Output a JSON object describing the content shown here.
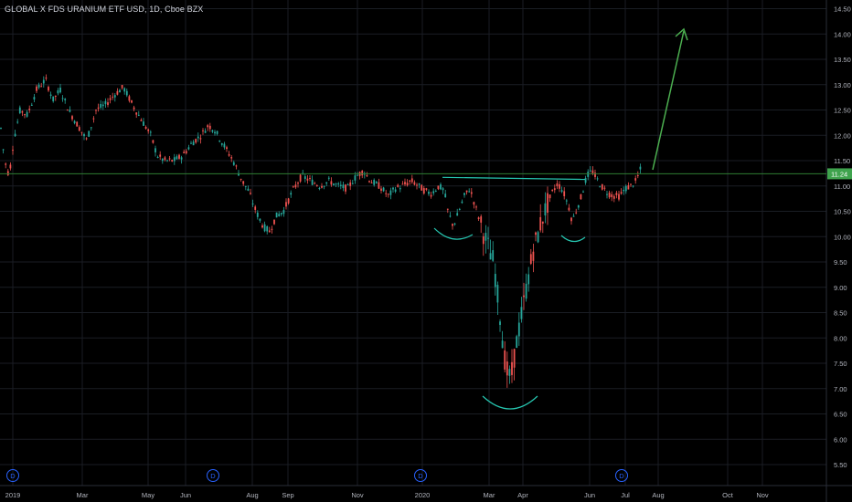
{
  "header": {
    "symbol_title": "GLOBAL X FDS URANIUM ETF USD, 1D, Cboe BZX"
  },
  "colors": {
    "background": "#000000",
    "grid": "#1a1d24",
    "up": "#26a69a",
    "down": "#ef5350",
    "axis_text": "#b2b5be",
    "price_line": "#2e7d32",
    "last_price_badge": "#3fa34d",
    "drawing_line": "#26c6b0",
    "drawing_arrow": "#4caf50",
    "dividend_marker": "#2962ff"
  },
  "chart_data": {
    "type": "candlestick",
    "title": "GLOBAL X FDS URANIUM ETF USD, 1D, Cboe BZX",
    "last_price": "11.24",
    "last_price_value": 11.24,
    "ylim": [
      5.3,
      14.6
    ],
    "y_ticks": [
      "14.50",
      "14.00",
      "13.50",
      "13.00",
      "12.50",
      "12.00",
      "11.50",
      "11.00",
      "10.50",
      "10.00",
      "9.50",
      "9.00",
      "8.50",
      "8.00",
      "7.50",
      "7.00",
      "6.50",
      "6.00",
      "5.50"
    ],
    "x_ticks": [
      "2019",
      "Mar",
      "May",
      "Jun",
      "Aug",
      "Sep",
      "Nov",
      "2020",
      "Mar",
      "Apr",
      "Jun",
      "Jul",
      "Aug",
      "Oct",
      "Nov"
    ],
    "dividend_markers": [
      "D",
      "D",
      "D",
      "D"
    ],
    "path_points": [
      [
        0,
        12.3
      ],
      [
        5,
        11.5
      ],
      [
        10,
        11.2
      ],
      [
        15,
        11.9
      ],
      [
        22,
        12.5
      ],
      [
        30,
        12.4
      ],
      [
        40,
        12.9
      ],
      [
        50,
        13.1
      ],
      [
        58,
        12.7
      ],
      [
        66,
        12.9
      ],
      [
        75,
        12.5
      ],
      [
        85,
        12.2
      ],
      [
        95,
        11.9
      ],
      [
        105,
        12.5
      ],
      [
        115,
        12.6
      ],
      [
        125,
        12.8
      ],
      [
        135,
        12.95
      ],
      [
        145,
        12.6
      ],
      [
        155,
        12.3
      ],
      [
        165,
        12.0
      ],
      [
        172,
        11.6
      ],
      [
        180,
        11.5
      ],
      [
        190,
        11.5
      ],
      [
        200,
        11.6
      ],
      [
        210,
        11.85
      ],
      [
        220,
        12.0
      ],
      [
        228,
        12.2
      ],
      [
        235,
        12.1
      ],
      [
        245,
        11.8
      ],
      [
        255,
        11.5
      ],
      [
        265,
        11.1
      ],
      [
        272,
        10.9
      ],
      [
        280,
        10.5
      ],
      [
        288,
        10.2
      ],
      [
        295,
        10.1
      ],
      [
        302,
        10.4
      ],
      [
        310,
        10.5
      ],
      [
        320,
        10.9
      ],
      [
        330,
        11.2
      ],
      [
        340,
        11.1
      ],
      [
        350,
        11.0
      ],
      [
        360,
        11.1
      ],
      [
        370,
        11.0
      ],
      [
        380,
        10.95
      ],
      [
        390,
        11.2
      ],
      [
        398,
        11.3
      ],
      [
        405,
        11.1
      ],
      [
        415,
        11.0
      ],
      [
        425,
        10.8
      ],
      [
        432,
        10.95
      ],
      [
        440,
        11.0
      ],
      [
        450,
        11.1
      ],
      [
        458,
        11.0
      ],
      [
        465,
        10.9
      ],
      [
        472,
        10.85
      ],
      [
        480,
        11.0
      ],
      [
        486,
        10.9
      ],
      [
        490,
        10.5
      ],
      [
        496,
        10.2
      ],
      [
        502,
        10.5
      ],
      [
        508,
        10.8
      ],
      [
        514,
        10.95
      ],
      [
        520,
        10.6
      ],
      [
        525,
        10.3
      ],
      [
        530,
        10.0
      ],
      [
        536,
        9.7
      ],
      [
        540,
        9.5
      ],
      [
        544,
        8.9
      ],
      [
        548,
        8.3
      ],
      [
        552,
        7.6
      ],
      [
        556,
        7.2
      ],
      [
        560,
        7.3
      ],
      [
        564,
        7.8
      ],
      [
        568,
        8.2
      ],
      [
        572,
        8.6
      ],
      [
        576,
        9.0
      ],
      [
        580,
        9.4
      ],
      [
        584,
        9.8
      ],
      [
        588,
        10.0
      ],
      [
        592,
        10.3
      ],
      [
        596,
        10.5
      ],
      [
        600,
        10.7
      ],
      [
        605,
        10.9
      ],
      [
        610,
        11.05
      ],
      [
        616,
        10.9
      ],
      [
        622,
        10.6
      ],
      [
        626,
        10.3
      ],
      [
        630,
        10.5
      ],
      [
        636,
        10.8
      ],
      [
        642,
        11.2
      ],
      [
        648,
        11.3
      ],
      [
        654,
        11.1
      ],
      [
        660,
        10.95
      ],
      [
        666,
        10.85
      ],
      [
        672,
        10.8
      ],
      [
        678,
        10.8
      ],
      [
        684,
        10.95
      ],
      [
        690,
        11.0
      ],
      [
        696,
        11.1
      ],
      [
        700,
        11.3
      ],
      [
        704,
        11.5
      ]
    ]
  },
  "drawings": {
    "resistance_line": {
      "y": 11.13
    },
    "bowls": [
      {
        "label": "left-shoulder"
      },
      {
        "label": "head"
      },
      {
        "label": "right-shoulder"
      }
    ],
    "arrow": {
      "direction": "up"
    }
  }
}
